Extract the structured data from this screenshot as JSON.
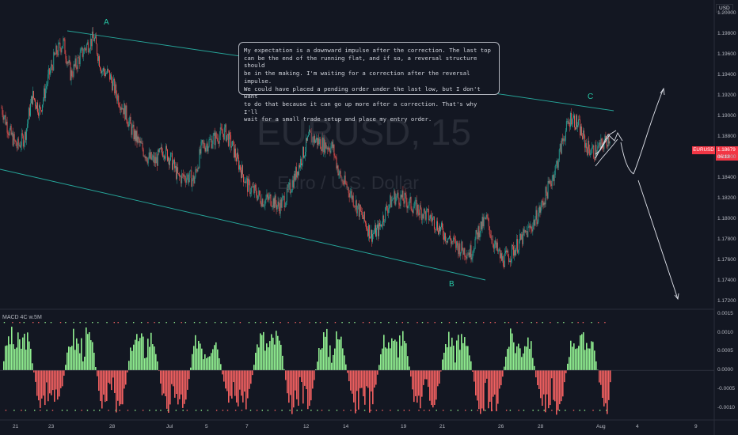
{
  "symbol": {
    "watermark": "EURUSD, 15",
    "description_watermark": "Euro / U.S. Dollar"
  },
  "currency": "USD",
  "annotation": {
    "text": "My expectation is a downward impulse after the correction. The last top\ncan be the end of the running flat, and if so, a reversal structure should\nbe in the making. I'm waiting for a correction after the reversal impulse.\nWe could have placed a pending order under the last low, but I don't want\nto do that because it can go up more after a correction. That's why I'll\nwait for a small trade setup and place my entry order."
  },
  "waves": {
    "a": "A",
    "b": "B",
    "c": "C"
  },
  "price_label": {
    "symbol": "EURUSD",
    "price": "1.18679",
    "countdown": "06:12"
  },
  "indicator": {
    "title": "MACD 4C w.5M"
  },
  "colors": {
    "bull": "#26a69a",
    "bear": "#ef5350",
    "channel": "#26a69a",
    "macd_up": "#90ee90",
    "macd_down": "#f06060",
    "bg": "#131722"
  },
  "chart_data": [
    {
      "type": "candlestick",
      "title": "EURUSD, 15",
      "y_ticks": [
        "1.20000",
        "1.19800",
        "1.19600",
        "1.19400",
        "1.19200",
        "1.19000",
        "1.18800",
        "1.18600",
        "1.18400",
        "1.18200",
        "1.18000",
        "1.17800",
        "1.17600",
        "1.17400",
        "1.17200"
      ],
      "x_ticks": [
        "21",
        "23",
        "28",
        "Jul",
        "5",
        "7",
        "12",
        "14",
        "19",
        "21",
        "26",
        "28",
        "Aug",
        "4",
        "9"
      ],
      "ylim": [
        1.1715,
        1.2005
      ],
      "path_close": [
        1.1908,
        1.1885,
        1.187,
        1.188,
        1.192,
        1.1905,
        1.1935,
        1.196,
        1.1972,
        1.194,
        1.1955,
        1.1968,
        1.1976,
        1.1945,
        1.194,
        1.192,
        1.1905,
        1.1885,
        1.1872,
        1.186,
        1.1856,
        1.1868,
        1.1858,
        1.184,
        1.1842,
        1.1838,
        1.187,
        1.1875,
        1.188,
        1.1885,
        1.187,
        1.185,
        1.1832,
        1.1826,
        1.1818,
        1.182,
        1.1812,
        1.1822,
        1.184,
        1.186,
        1.188,
        1.1876,
        1.1872,
        1.187,
        1.184,
        1.183,
        1.1815,
        1.18,
        1.1785,
        1.179,
        1.181,
        1.1822,
        1.182,
        1.1815,
        1.181,
        1.1805,
        1.18,
        1.179,
        1.1782,
        1.1775,
        1.177,
        1.1768,
        1.179,
        1.18,
        1.1775,
        1.176,
        1.1765,
        1.1775,
        1.1785,
        1.1795,
        1.181,
        1.183,
        1.185,
        1.188,
        1.19,
        1.189,
        1.187,
        1.1865,
        1.1872,
        1.188
      ]
    },
    {
      "type": "histogram",
      "title": "MACD 4C w.5M",
      "y_ticks": [
        "0.0015",
        "0.0010",
        "0.0005",
        "0.0000",
        "-0.0005",
        "-0.0010"
      ],
      "ylim": [
        -0.0013,
        0.0016
      ]
    }
  ]
}
